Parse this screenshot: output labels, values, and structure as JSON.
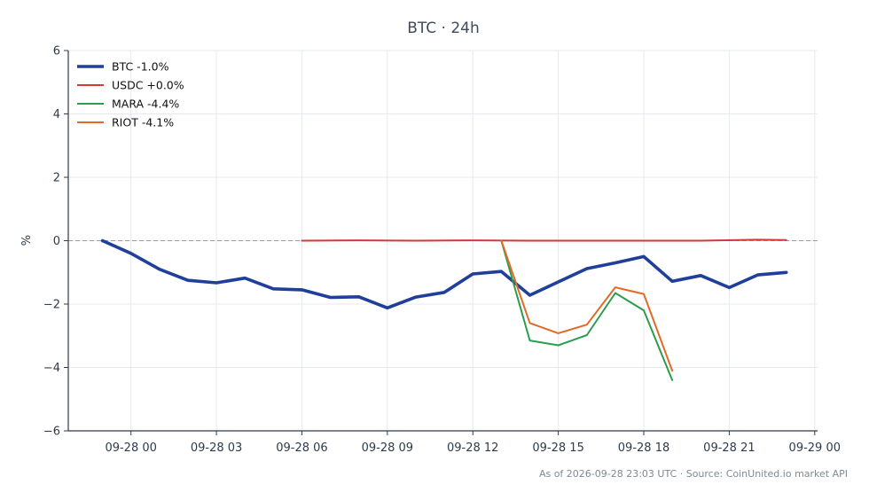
{
  "chart_data": {
    "type": "line",
    "title": "BTC · 24h",
    "ylabel": "%",
    "xlabel": "",
    "x_tick_labels": [
      "09-28 00",
      "09-28 03",
      "09-28 06",
      "09-28 09",
      "09-28 12",
      "09-28 15",
      "09-28 18",
      "09-28 21",
      "09-29 00"
    ],
    "y_tick_labels": [
      "−6",
      "−4",
      "−2",
      "0",
      "2",
      "4",
      "6"
    ],
    "x_ticks_hours": [
      0,
      3,
      6,
      9,
      12,
      15,
      18,
      21,
      24
    ],
    "y_ticks": [
      -6,
      -4,
      -2,
      0,
      2,
      4,
      6
    ],
    "xlim_hours": [
      -2.2,
      24.1
    ],
    "ylim": [
      -6,
      6
    ],
    "x_unit": "hours from 09-28 00:00",
    "grid": true,
    "zero_line": true,
    "legend_position": "top-left",
    "series": [
      {
        "name": "BTC -1.0%",
        "color": "#1f3f9a",
        "emphasis": "bold",
        "points": [
          [
            -1,
            0.0
          ],
          [
            0,
            -0.4
          ],
          [
            1,
            -0.9
          ],
          [
            2,
            -1.25
          ],
          [
            3,
            -1.33
          ],
          [
            4,
            -1.18
          ],
          [
            5,
            -1.52
          ],
          [
            6,
            -1.55
          ],
          [
            7,
            -1.79
          ],
          [
            8,
            -1.77
          ],
          [
            9,
            -2.12
          ],
          [
            10,
            -1.78
          ],
          [
            11,
            -1.63
          ],
          [
            12,
            -1.05
          ],
          [
            13,
            -0.97
          ],
          [
            14,
            -1.72
          ],
          [
            15,
            -1.3
          ],
          [
            16,
            -0.88
          ],
          [
            17,
            -0.7
          ],
          [
            18,
            -0.5
          ],
          [
            19,
            -1.28
          ],
          [
            20,
            -1.1
          ],
          [
            21,
            -1.48
          ],
          [
            22,
            -1.08
          ],
          [
            23,
            -1.0
          ]
        ]
      },
      {
        "name": "USDC +0.0%",
        "color": "#d33a35",
        "emphasis": "normal",
        "points": [
          [
            6,
            0.0
          ],
          [
            8,
            0.01
          ],
          [
            10,
            0.0
          ],
          [
            12,
            0.01
          ],
          [
            14,
            0.0
          ],
          [
            16,
            0.0
          ],
          [
            18,
            0.0
          ],
          [
            20,
            0.0
          ],
          [
            22,
            0.03
          ],
          [
            23,
            0.02
          ]
        ]
      },
      {
        "name": "MARA -4.4%",
        "color": "#2a9d4f",
        "emphasis": "normal",
        "points": [
          [
            13,
            0.0
          ],
          [
            14,
            -3.15
          ],
          [
            15,
            -3.3
          ],
          [
            16,
            -2.98
          ],
          [
            17,
            -1.65
          ],
          [
            18,
            -2.2
          ],
          [
            19,
            -4.4
          ]
        ]
      },
      {
        "name": "RIOT -4.1%",
        "color": "#e06a26",
        "emphasis": "normal",
        "points": [
          [
            13,
            0.0
          ],
          [
            14,
            -2.6
          ],
          [
            15,
            -2.92
          ],
          [
            16,
            -2.65
          ],
          [
            17,
            -1.47
          ],
          [
            18,
            -1.68
          ],
          [
            19,
            -4.1
          ]
        ]
      }
    ]
  },
  "footer": {
    "text": "As of 2026-09-28 23:03 UTC · Source: CoinUnited.io market API"
  },
  "colors": {
    "axis": "#2d3b4a",
    "grid": "#e6e9ee",
    "zero_line": "#8aa0b4"
  }
}
